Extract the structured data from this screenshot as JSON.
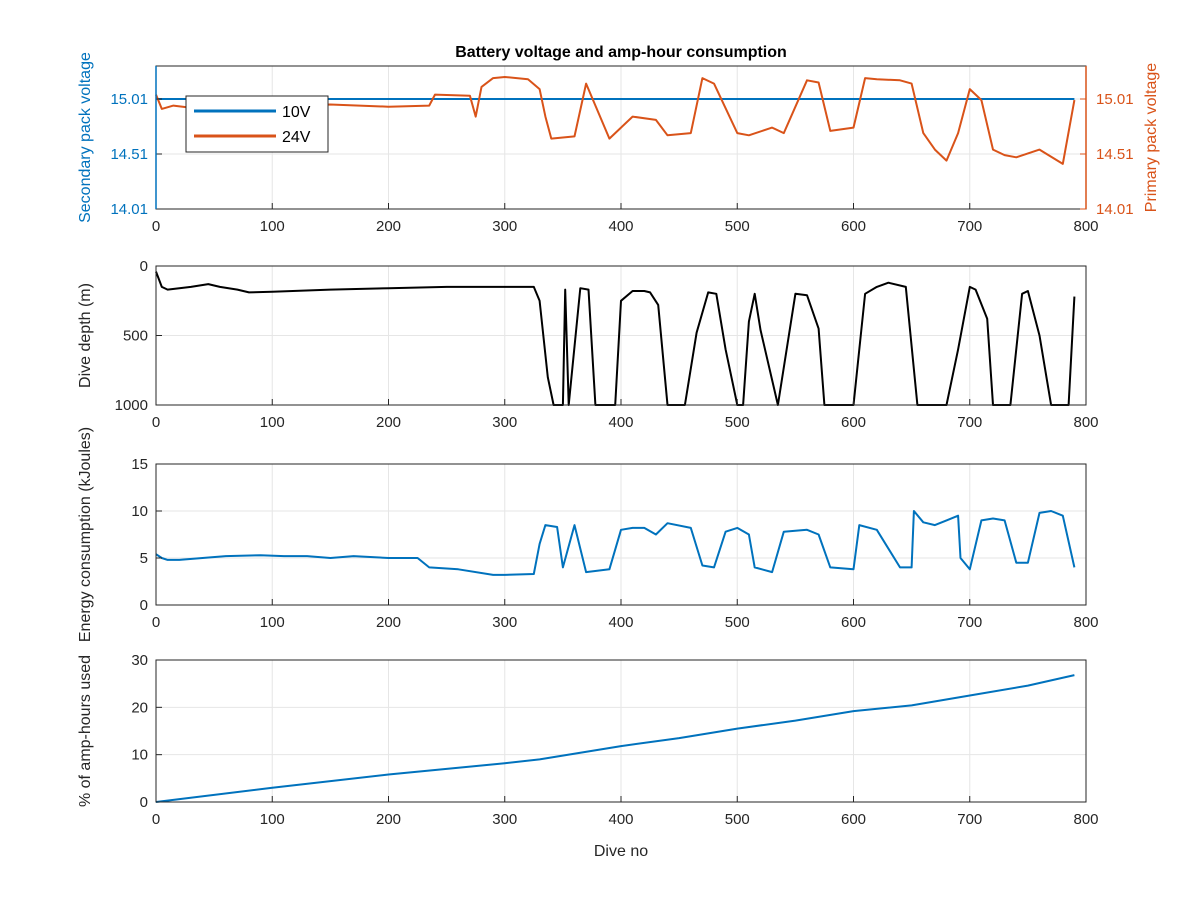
{
  "figure": {
    "title": "Battery voltage and amp-hour consumption"
  },
  "colors": {
    "blue": "#0072BD",
    "orange": "#D95319",
    "black": "#000000",
    "grid": "#e6e6e6",
    "axis": "#262626"
  },
  "chart_data": [
    {
      "type": "line",
      "title": "Battery voltage and amp-hour consumption",
      "xlabel": "",
      "ylabel_left": "Secondary pack voltage",
      "ylabel_right": "Primary pack voltage",
      "xlim": [
        0,
        800
      ],
      "ylim_left": [
        14.01,
        15.31
      ],
      "ylim_right": [
        14.01,
        15.31
      ],
      "xticks": [
        0,
        100,
        200,
        300,
        400,
        500,
        600,
        700,
        800
      ],
      "yticks_left": [
        14.01,
        14.51,
        15.01
      ],
      "yticks_right": [
        14.01,
        14.51,
        15.01
      ],
      "grid": true,
      "legend": {
        "location": "top-left",
        "entries": [
          "10V",
          "24V"
        ]
      },
      "series": [
        {
          "name": "10V",
          "axis": "left",
          "color": "#0072BD",
          "x": [
            0,
            790
          ],
          "y": [
            15.01,
            15.01
          ]
        },
        {
          "name": "24V",
          "axis": "right",
          "color": "#D95319",
          "x": [
            0,
            5,
            15,
            30,
            60,
            100,
            150,
            200,
            235,
            240,
            270,
            275,
            280,
            290,
            300,
            320,
            330,
            335,
            340,
            360,
            370,
            390,
            400,
            410,
            430,
            440,
            460,
            470,
            480,
            500,
            510,
            530,
            540,
            560,
            570,
            580,
            600,
            610,
            620,
            640,
            650,
            660,
            670,
            680,
            690,
            700,
            710,
            720,
            730,
            740,
            760,
            780,
            790
          ],
          "y": [
            15.05,
            14.92,
            14.95,
            14.93,
            14.95,
            14.95,
            14.96,
            14.94,
            14.95,
            15.05,
            15.04,
            14.85,
            15.12,
            15.2,
            15.21,
            15.19,
            15.1,
            14.85,
            14.65,
            14.67,
            15.15,
            14.65,
            14.75,
            14.85,
            14.82,
            14.68,
            14.7,
            15.2,
            15.15,
            14.7,
            14.68,
            14.75,
            14.7,
            15.18,
            15.16,
            14.72,
            14.75,
            15.2,
            15.19,
            15.18,
            15.15,
            14.7,
            14.55,
            14.45,
            14.7,
            15.1,
            15.0,
            14.55,
            14.5,
            14.48,
            14.55,
            14.42,
            15.0
          ]
        }
      ]
    },
    {
      "type": "line",
      "title": "",
      "xlabel": "",
      "ylabel": "Dive depth (m)",
      "xlim": [
        0,
        800
      ],
      "ylim": [
        0,
        1000
      ],
      "y_reversed": true,
      "xticks": [
        0,
        100,
        200,
        300,
        400,
        500,
        600,
        700,
        800
      ],
      "yticks": [
        0,
        500,
        1000
      ],
      "grid": true,
      "series": [
        {
          "name": "",
          "color": "#000000",
          "x": [
            0,
            5,
            10,
            20,
            30,
            45,
            55,
            70,
            80,
            100,
            150,
            200,
            250,
            300,
            325,
            330,
            337,
            342,
            350,
            352,
            355,
            365,
            372,
            378,
            395,
            400,
            410,
            420,
            425,
            432,
            440,
            455,
            465,
            475,
            482,
            490,
            500,
            505,
            510,
            515,
            520,
            535,
            550,
            560,
            570,
            575,
            590,
            600,
            610,
            620,
            630,
            645,
            655,
            680,
            690,
            700,
            705,
            715,
            720,
            735,
            745,
            750,
            760,
            770,
            785,
            790
          ],
          "y": [
            40,
            150,
            170,
            160,
            150,
            130,
            150,
            170,
            190,
            185,
            170,
            160,
            150,
            150,
            150,
            250,
            800,
            1000,
            1000,
            170,
            1000,
            160,
            170,
            1000,
            1000,
            250,
            180,
            180,
            190,
            280,
            1000,
            1000,
            480,
            190,
            200,
            600,
            1000,
            1000,
            400,
            200,
            460,
            1000,
            200,
            210,
            450,
            1000,
            1000,
            1000,
            200,
            150,
            120,
            150,
            1000,
            1000,
            600,
            150,
            170,
            380,
            1000,
            1000,
            200,
            180,
            500,
            1000,
            1000,
            220
          ]
        }
      ]
    },
    {
      "type": "line",
      "title": "",
      "xlabel": "",
      "ylabel": "Energy consumption (kJoules)",
      "xlim": [
        0,
        800
      ],
      "ylim": [
        0,
        15
      ],
      "xticks": [
        0,
        100,
        200,
        300,
        400,
        500,
        600,
        700,
        800
      ],
      "yticks": [
        0,
        5,
        10,
        15
      ],
      "grid": true,
      "series": [
        {
          "name": "",
          "color": "#0072BD",
          "x": [
            0,
            5,
            10,
            20,
            40,
            60,
            90,
            110,
            130,
            150,
            170,
            200,
            225,
            235,
            260,
            290,
            300,
            325,
            330,
            335,
            345,
            350,
            360,
            370,
            390,
            400,
            410,
            420,
            430,
            440,
            460,
            470,
            480,
            490,
            500,
            510,
            515,
            530,
            540,
            560,
            570,
            580,
            600,
            605,
            620,
            640,
            650,
            652,
            660,
            670,
            680,
            690,
            692,
            700,
            710,
            720,
            730,
            740,
            750,
            760,
            770,
            780,
            790
          ],
          "y": [
            5.4,
            5.0,
            4.8,
            4.8,
            5.0,
            5.2,
            5.3,
            5.2,
            5.2,
            5.0,
            5.2,
            5.0,
            5.0,
            4.0,
            3.8,
            3.2,
            3.2,
            3.3,
            6.5,
            8.5,
            8.3,
            4.0,
            8.5,
            3.5,
            3.8,
            8.0,
            8.2,
            8.2,
            7.5,
            8.7,
            8.2,
            4.2,
            4.0,
            7.8,
            8.2,
            7.5,
            4.0,
            3.5,
            7.8,
            8.0,
            7.5,
            4.0,
            3.8,
            8.5,
            8.0,
            4.0,
            4.0,
            10.0,
            8.8,
            8.5,
            9.0,
            9.5,
            5.0,
            3.8,
            9.0,
            9.2,
            9.0,
            4.5,
            4.5,
            9.8,
            10.0,
            9.5,
            4.0
          ]
        }
      ]
    },
    {
      "type": "line",
      "title": "",
      "xlabel": "Dive no",
      "ylabel": "% of amp-hours used",
      "xlim": [
        0,
        800
      ],
      "ylim": [
        0,
        30
      ],
      "xticks": [
        0,
        100,
        200,
        300,
        400,
        500,
        600,
        700,
        800
      ],
      "yticks": [
        0,
        10,
        20,
        30
      ],
      "grid": true,
      "series": [
        {
          "name": "",
          "color": "#0072BD",
          "x": [
            0,
            100,
            200,
            300,
            330,
            400,
            450,
            500,
            550,
            600,
            650,
            700,
            750,
            790
          ],
          "y": [
            0,
            3.0,
            5.8,
            8.2,
            9.0,
            11.8,
            13.5,
            15.5,
            17.2,
            19.2,
            20.4,
            22.5,
            24.6,
            26.8
          ]
        }
      ]
    }
  ]
}
